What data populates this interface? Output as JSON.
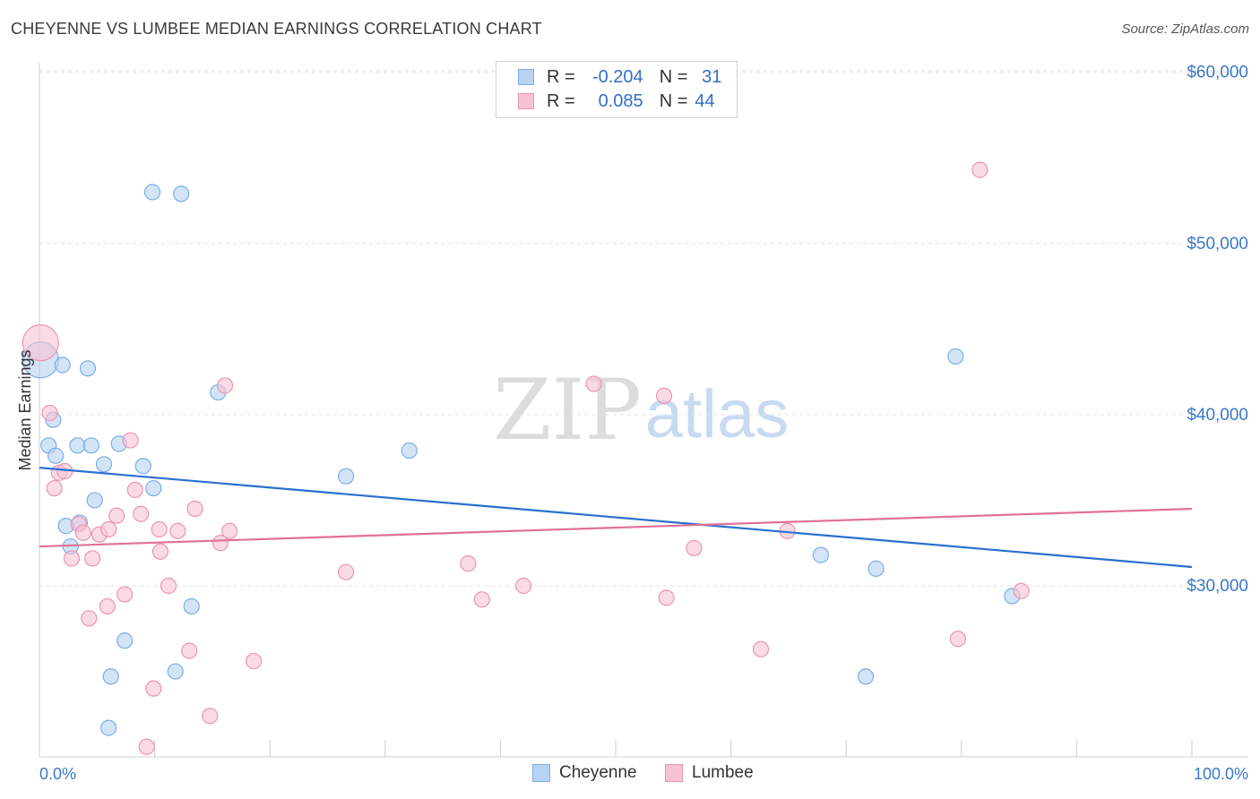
{
  "header": {
    "title": "CHEYENNE VS LUMBEE MEDIAN EARNINGS CORRELATION CHART",
    "source": "Source: ZipAtlas.com"
  },
  "watermark": {
    "part1": "ZIP",
    "part2": "atlas"
  },
  "legend": {
    "rows": [
      {
        "r_label": "R =",
        "r_value": "-0.204",
        "n_label": "N =",
        "n_value": "31"
      },
      {
        "r_label": "R =",
        "r_value": "0.085",
        "n_label": "N =",
        "n_value": "44"
      }
    ]
  },
  "bottom_legend": {
    "items": [
      "Cheyenne",
      "Lumbee"
    ]
  },
  "colors": {
    "cheyenne_fill": "#b8d2f2",
    "cheyenne_stroke": "#7aaee6",
    "cheyenne_line": "#2a6fce",
    "lumbee_fill": "#f7c3d3",
    "lumbee_stroke": "#eb95b0",
    "lumbee_line": "#e07096",
    "tick_label": "#3a78c9"
  },
  "chart_data": {
    "type": "scatter",
    "title": "CHEYENNE VS LUMBEE MEDIAN EARNINGS CORRELATION CHART",
    "xlabel": "",
    "ylabel": "Median Earnings",
    "xlim": [
      0,
      100
    ],
    "ylim": [
      20000,
      61000
    ],
    "x_tick_labels": [
      "0.0%",
      "100.0%"
    ],
    "y_ticks": [
      30000,
      40000,
      50000,
      60000
    ],
    "y_tick_labels": [
      "$30,000",
      "$40,000",
      "$50,000",
      "$60,000"
    ],
    "grid": true,
    "series": [
      {
        "name": "Cheyenne",
        "r": -0.204,
        "n": 31,
        "trend": {
          "y_at_0": 36900,
          "y_at_100": 31100
        },
        "points": [
          [
            0.1,
            43200
          ],
          [
            0.8,
            38200
          ],
          [
            1.4,
            37600
          ],
          [
            1.2,
            39700
          ],
          [
            2.0,
            42900
          ],
          [
            2.3,
            33500
          ],
          [
            2.7,
            32300
          ],
          [
            3.3,
            38200
          ],
          [
            3.5,
            33700
          ],
          [
            4.2,
            42700
          ],
          [
            4.5,
            38200
          ],
          [
            4.8,
            35000
          ],
          [
            5.6,
            37100
          ],
          [
            6.2,
            24700
          ],
          [
            6.0,
            21700
          ],
          [
            6.9,
            38300
          ],
          [
            7.4,
            26800
          ],
          [
            9.0,
            37000
          ],
          [
            9.8,
            53000
          ],
          [
            9.9,
            35700
          ],
          [
            12.3,
            52900
          ],
          [
            11.8,
            25000
          ],
          [
            13.2,
            28800
          ],
          [
            15.5,
            41300
          ],
          [
            26.6,
            36400
          ],
          [
            32.1,
            37900
          ],
          [
            67.8,
            31800
          ],
          [
            71.7,
            24700
          ],
          [
            72.6,
            31000
          ],
          [
            79.5,
            43400
          ],
          [
            84.4,
            29400
          ]
        ]
      },
      {
        "name": "Lumbee",
        "r": 0.085,
        "n": 44,
        "trend": {
          "y_at_0": 32300,
          "y_at_100": 34500
        },
        "points": [
          [
            0.1,
            44200
          ],
          [
            0.9,
            40100
          ],
          [
            1.3,
            35700
          ],
          [
            1.7,
            36600
          ],
          [
            2.2,
            36700
          ],
          [
            2.8,
            31600
          ],
          [
            3.4,
            33600
          ],
          [
            3.8,
            33100
          ],
          [
            4.3,
            28100
          ],
          [
            4.6,
            31600
          ],
          [
            5.2,
            33000
          ],
          [
            5.9,
            28800
          ],
          [
            6.0,
            33300
          ],
          [
            6.7,
            34100
          ],
          [
            7.4,
            29500
          ],
          [
            7.9,
            38500
          ],
          [
            8.3,
            35600
          ],
          [
            8.8,
            34200
          ],
          [
            9.3,
            20600
          ],
          [
            9.9,
            24000
          ],
          [
            10.4,
            33300
          ],
          [
            10.5,
            32000
          ],
          [
            11.2,
            30000
          ],
          [
            12.0,
            33200
          ],
          [
            13.0,
            26200
          ],
          [
            13.5,
            34500
          ],
          [
            14.8,
            22400
          ],
          [
            15.7,
            32500
          ],
          [
            16.1,
            41700
          ],
          [
            16.5,
            33200
          ],
          [
            18.6,
            25600
          ],
          [
            26.6,
            30800
          ],
          [
            37.2,
            31300
          ],
          [
            38.4,
            29200
          ],
          [
            42.0,
            30000
          ],
          [
            48.1,
            41800
          ],
          [
            54.2,
            41100
          ],
          [
            54.4,
            29300
          ],
          [
            56.8,
            32200
          ],
          [
            62.6,
            26300
          ],
          [
            64.9,
            33200
          ],
          [
            79.7,
            26900
          ],
          [
            81.6,
            54300
          ],
          [
            85.2,
            29700
          ]
        ]
      }
    ]
  }
}
